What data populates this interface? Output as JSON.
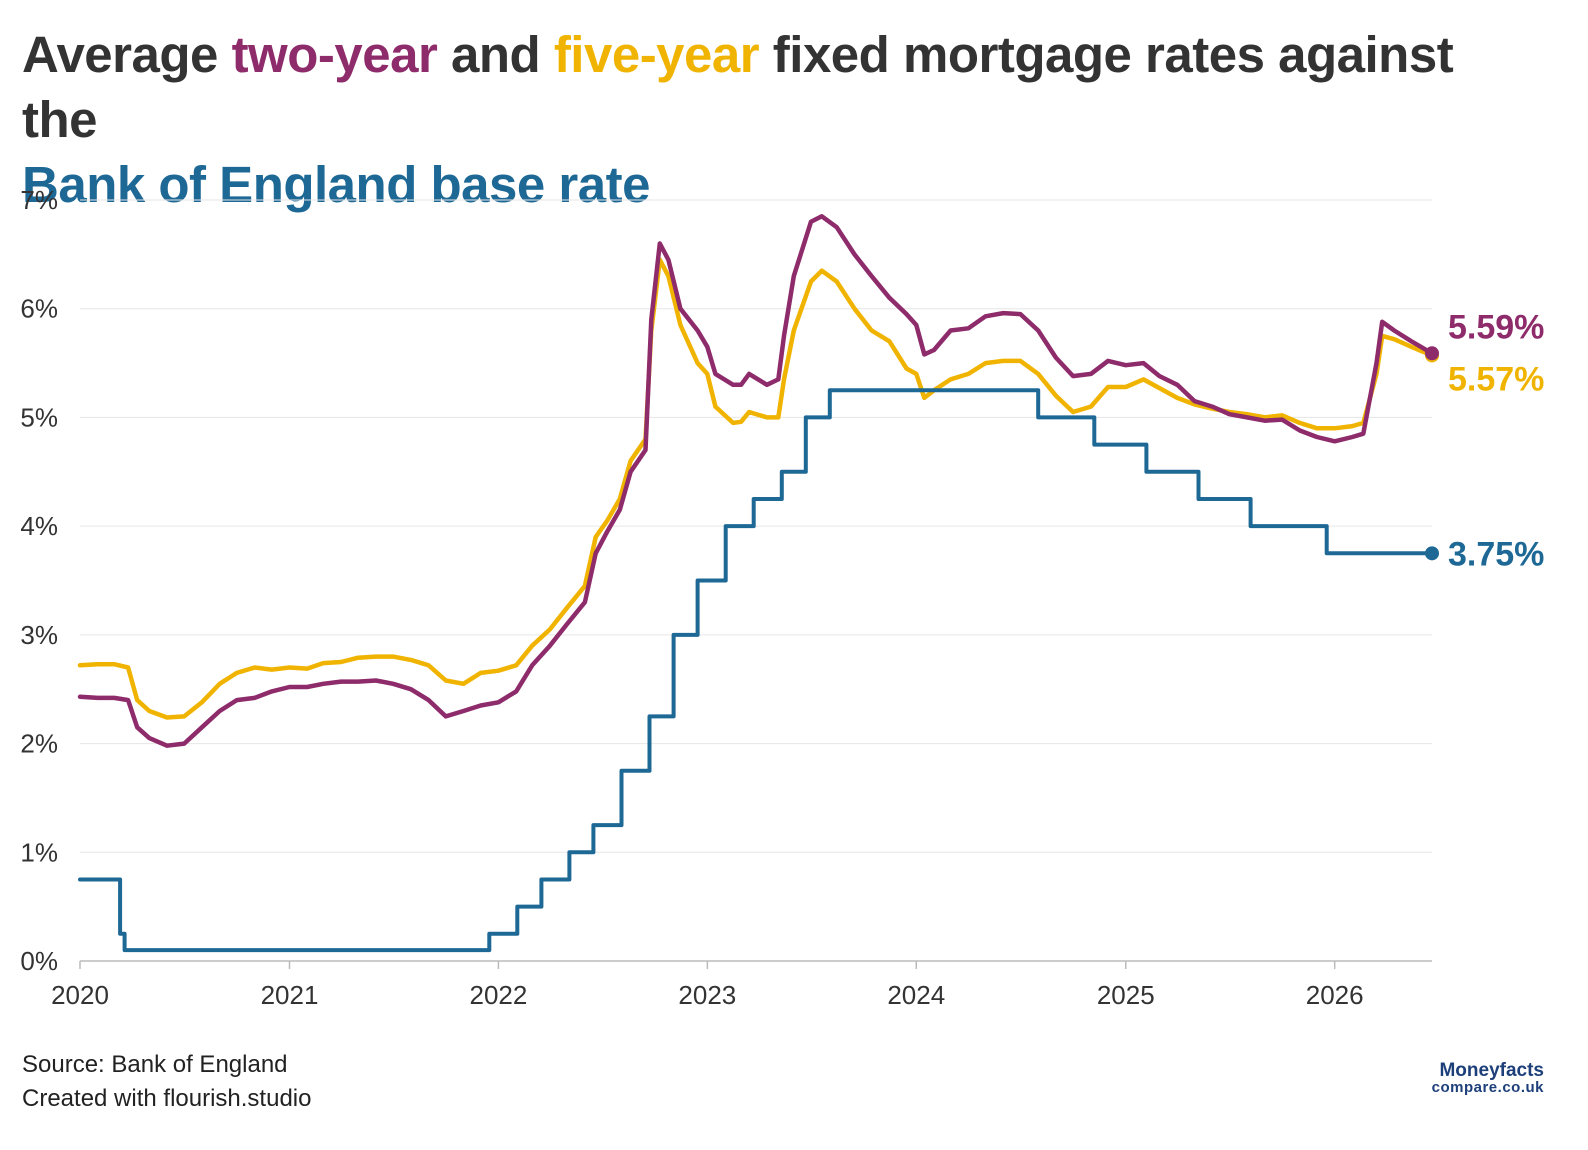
{
  "title": {
    "part1": "Average ",
    "two_year": "two-year",
    "part2": " and ",
    "five_year": "five-year",
    "part3": " fixed mortgage rates against the ",
    "base_rate": "Bank of England base rate"
  },
  "footer": {
    "source": "Source: Bank of England",
    "created": "Created with flourish.studio"
  },
  "logo": {
    "line1": "Moneyfacts",
    "line2": "compare.co.uk"
  },
  "colors": {
    "two_year": "#8e2b6b",
    "five_year": "#f0b400",
    "base_rate": "#1e6896",
    "grid": "#e6e6e6",
    "axis": "#bbbbbb"
  },
  "chart_data": {
    "type": "line",
    "xlim": [
      "2020-01-01",
      "2026-06-20"
    ],
    "ylim": [
      0,
      7
    ],
    "y_ticks": [
      "0%",
      "1%",
      "2%",
      "3%",
      "4%",
      "5%",
      "6%",
      "7%"
    ],
    "x_ticks": [
      "2020",
      "2021",
      "2022",
      "2023",
      "2024",
      "2025",
      "2026"
    ],
    "grid": true,
    "end_labels": {
      "two_year": "5.59%",
      "five_year": "5.57%",
      "base_rate": "3.75%"
    },
    "series": [
      {
        "key": "five_year",
        "points": [
          [
            "2020-01-01",
            2.72
          ],
          [
            "2020-02-01",
            2.73
          ],
          [
            "2020-03-01",
            2.73
          ],
          [
            "2020-03-25",
            2.7
          ],
          [
            "2020-04-10",
            2.4
          ],
          [
            "2020-05-01",
            2.3
          ],
          [
            "2020-06-01",
            2.24
          ],
          [
            "2020-07-01",
            2.25
          ],
          [
            "2020-08-01",
            2.38
          ],
          [
            "2020-09-01",
            2.55
          ],
          [
            "2020-10-01",
            2.65
          ],
          [
            "2020-11-01",
            2.7
          ],
          [
            "2020-12-01",
            2.68
          ],
          [
            "2021-01-01",
            2.7
          ],
          [
            "2021-02-01",
            2.69
          ],
          [
            "2021-03-01",
            2.74
          ],
          [
            "2021-04-01",
            2.75
          ],
          [
            "2021-05-01",
            2.79
          ],
          [
            "2021-06-01",
            2.8
          ],
          [
            "2021-07-01",
            2.8
          ],
          [
            "2021-08-01",
            2.77
          ],
          [
            "2021-09-01",
            2.72
          ],
          [
            "2021-10-01",
            2.58
          ],
          [
            "2021-11-01",
            2.55
          ],
          [
            "2021-12-01",
            2.65
          ],
          [
            "2022-01-01",
            2.67
          ],
          [
            "2022-02-01",
            2.72
          ],
          [
            "2022-03-01",
            2.9
          ],
          [
            "2022-04-01",
            3.05
          ],
          [
            "2022-05-01",
            3.25
          ],
          [
            "2022-06-01",
            3.45
          ],
          [
            "2022-06-20",
            3.9
          ],
          [
            "2022-07-10",
            4.05
          ],
          [
            "2022-08-01",
            4.25
          ],
          [
            "2022-08-20",
            4.6
          ],
          [
            "2022-09-15",
            4.8
          ],
          [
            "2022-09-25",
            5.8
          ],
          [
            "2022-10-10",
            6.45
          ],
          [
            "2022-10-25",
            6.3
          ],
          [
            "2022-11-15",
            5.85
          ],
          [
            "2022-12-15",
            5.5
          ],
          [
            "2023-01-01",
            5.4
          ],
          [
            "2023-01-15",
            5.1
          ],
          [
            "2023-02-15",
            4.95
          ],
          [
            "2023-03-01",
            4.96
          ],
          [
            "2023-03-15",
            5.05
          ],
          [
            "2023-04-15",
            5.0
          ],
          [
            "2023-05-05",
            5.0
          ],
          [
            "2023-05-15",
            5.35
          ],
          [
            "2023-06-01",
            5.8
          ],
          [
            "2023-07-01",
            6.25
          ],
          [
            "2023-07-20",
            6.35
          ],
          [
            "2023-08-15",
            6.25
          ],
          [
            "2023-09-15",
            6.0
          ],
          [
            "2023-10-15",
            5.8
          ],
          [
            "2023-11-15",
            5.7
          ],
          [
            "2023-12-15",
            5.45
          ],
          [
            "2024-01-01",
            5.4
          ],
          [
            "2024-01-15",
            5.18
          ],
          [
            "2024-02-01",
            5.25
          ],
          [
            "2024-03-01",
            5.35
          ],
          [
            "2024-04-01",
            5.4
          ],
          [
            "2024-05-01",
            5.5
          ],
          [
            "2024-06-01",
            5.52
          ],
          [
            "2024-07-01",
            5.52
          ],
          [
            "2024-08-01",
            5.4
          ],
          [
            "2024-09-01",
            5.2
          ],
          [
            "2024-10-01",
            5.05
          ],
          [
            "2024-11-01",
            5.1
          ],
          [
            "2024-12-01",
            5.28
          ],
          [
            "2025-01-01",
            5.28
          ],
          [
            "2025-02-01",
            5.35
          ],
          [
            "2025-03-01",
            5.27
          ],
          [
            "2025-04-01",
            5.18
          ],
          [
            "2025-05-01",
            5.12
          ],
          [
            "2025-06-01",
            5.08
          ],
          [
            "2025-07-01",
            5.05
          ],
          [
            "2025-08-01",
            5.03
          ],
          [
            "2025-09-01",
            5.0
          ],
          [
            "2025-10-01",
            5.02
          ],
          [
            "2025-11-01",
            4.95
          ],
          [
            "2025-12-01",
            4.9
          ],
          [
            "2026-01-01",
            4.9
          ],
          [
            "2026-02-01",
            4.92
          ],
          [
            "2026-02-20",
            4.95
          ],
          [
            "2026-03-15",
            5.4
          ],
          [
            "2026-03-25",
            5.75
          ],
          [
            "2026-04-15",
            5.72
          ],
          [
            "2026-05-15",
            5.65
          ],
          [
            "2026-06-20",
            5.57
          ]
        ]
      },
      {
        "key": "two_year",
        "points": [
          [
            "2020-01-01",
            2.43
          ],
          [
            "2020-02-01",
            2.42
          ],
          [
            "2020-03-01",
            2.42
          ],
          [
            "2020-03-25",
            2.4
          ],
          [
            "2020-04-10",
            2.15
          ],
          [
            "2020-05-01",
            2.05
          ],
          [
            "2020-06-01",
            1.98
          ],
          [
            "2020-07-01",
            2.0
          ],
          [
            "2020-08-01",
            2.15
          ],
          [
            "2020-09-01",
            2.3
          ],
          [
            "2020-10-01",
            2.4
          ],
          [
            "2020-11-01",
            2.42
          ],
          [
            "2020-12-01",
            2.48
          ],
          [
            "2021-01-01",
            2.52
          ],
          [
            "2021-02-01",
            2.52
          ],
          [
            "2021-03-01",
            2.55
          ],
          [
            "2021-04-01",
            2.57
          ],
          [
            "2021-05-01",
            2.57
          ],
          [
            "2021-06-01",
            2.58
          ],
          [
            "2021-07-01",
            2.55
          ],
          [
            "2021-08-01",
            2.5
          ],
          [
            "2021-09-01",
            2.4
          ],
          [
            "2021-10-01",
            2.25
          ],
          [
            "2021-11-01",
            2.3
          ],
          [
            "2021-12-01",
            2.35
          ],
          [
            "2022-01-01",
            2.38
          ],
          [
            "2022-02-01",
            2.48
          ],
          [
            "2022-03-01",
            2.72
          ],
          [
            "2022-04-01",
            2.9
          ],
          [
            "2022-05-01",
            3.1
          ],
          [
            "2022-06-01",
            3.3
          ],
          [
            "2022-06-20",
            3.75
          ],
          [
            "2022-07-10",
            3.95
          ],
          [
            "2022-08-01",
            4.15
          ],
          [
            "2022-08-20",
            4.5
          ],
          [
            "2022-09-15",
            4.7
          ],
          [
            "2022-09-25",
            5.9
          ],
          [
            "2022-10-10",
            6.6
          ],
          [
            "2022-10-25",
            6.45
          ],
          [
            "2022-11-15",
            6.0
          ],
          [
            "2022-12-15",
            5.8
          ],
          [
            "2023-01-01",
            5.65
          ],
          [
            "2023-01-15",
            5.4
          ],
          [
            "2023-02-15",
            5.3
          ],
          [
            "2023-03-01",
            5.3
          ],
          [
            "2023-03-15",
            5.4
          ],
          [
            "2023-04-15",
            5.3
          ],
          [
            "2023-05-05",
            5.35
          ],
          [
            "2023-05-15",
            5.75
          ],
          [
            "2023-06-01",
            6.3
          ],
          [
            "2023-07-01",
            6.8
          ],
          [
            "2023-07-20",
            6.85
          ],
          [
            "2023-08-15",
            6.75
          ],
          [
            "2023-09-15",
            6.5
          ],
          [
            "2023-10-15",
            6.3
          ],
          [
            "2023-11-15",
            6.1
          ],
          [
            "2023-12-15",
            5.95
          ],
          [
            "2024-01-01",
            5.85
          ],
          [
            "2024-01-15",
            5.58
          ],
          [
            "2024-02-01",
            5.62
          ],
          [
            "2024-03-01",
            5.8
          ],
          [
            "2024-04-01",
            5.82
          ],
          [
            "2024-05-01",
            5.93
          ],
          [
            "2024-06-01",
            5.96
          ],
          [
            "2024-07-01",
            5.95
          ],
          [
            "2024-08-01",
            5.8
          ],
          [
            "2024-09-01",
            5.55
          ],
          [
            "2024-10-01",
            5.38
          ],
          [
            "2024-11-01",
            5.4
          ],
          [
            "2024-12-01",
            5.52
          ],
          [
            "2025-01-01",
            5.48
          ],
          [
            "2025-02-01",
            5.5
          ],
          [
            "2025-03-01",
            5.38
          ],
          [
            "2025-04-01",
            5.3
          ],
          [
            "2025-05-01",
            5.15
          ],
          [
            "2025-06-01",
            5.1
          ],
          [
            "2025-07-01",
            5.03
          ],
          [
            "2025-08-01",
            5.0
          ],
          [
            "2025-09-01",
            4.97
          ],
          [
            "2025-10-01",
            4.98
          ],
          [
            "2025-11-01",
            4.88
          ],
          [
            "2025-12-01",
            4.82
          ],
          [
            "2026-01-01",
            4.78
          ],
          [
            "2026-02-01",
            4.82
          ],
          [
            "2026-02-20",
            4.85
          ],
          [
            "2026-03-15",
            5.5
          ],
          [
            "2026-03-25",
            5.88
          ],
          [
            "2026-04-15",
            5.8
          ],
          [
            "2026-05-15",
            5.7
          ],
          [
            "2026-06-20",
            5.59
          ]
        ]
      },
      {
        "key": "base_rate",
        "step": true,
        "points": [
          [
            "2020-01-01",
            0.75
          ],
          [
            "2020-03-11",
            0.25
          ],
          [
            "2020-03-19",
            0.1
          ],
          [
            "2021-12-16",
            0.25
          ],
          [
            "2022-02-03",
            0.5
          ],
          [
            "2022-03-17",
            0.75
          ],
          [
            "2022-05-05",
            1.0
          ],
          [
            "2022-06-16",
            1.25
          ],
          [
            "2022-08-04",
            1.75
          ],
          [
            "2022-09-22",
            2.25
          ],
          [
            "2022-11-03",
            3.0
          ],
          [
            "2022-12-15",
            3.5
          ],
          [
            "2023-02-02",
            4.0
          ],
          [
            "2023-03-23",
            4.25
          ],
          [
            "2023-05-11",
            4.5
          ],
          [
            "2023-06-22",
            5.0
          ],
          [
            "2023-08-03",
            5.25
          ],
          [
            "2024-08-01",
            5.0
          ],
          [
            "2024-11-07",
            4.75
          ],
          [
            "2025-02-06",
            4.5
          ],
          [
            "2025-05-08",
            4.25
          ],
          [
            "2025-08-07",
            4.0
          ],
          [
            "2025-12-18",
            3.75
          ],
          [
            "2026-06-20",
            3.75
          ]
        ]
      }
    ]
  }
}
